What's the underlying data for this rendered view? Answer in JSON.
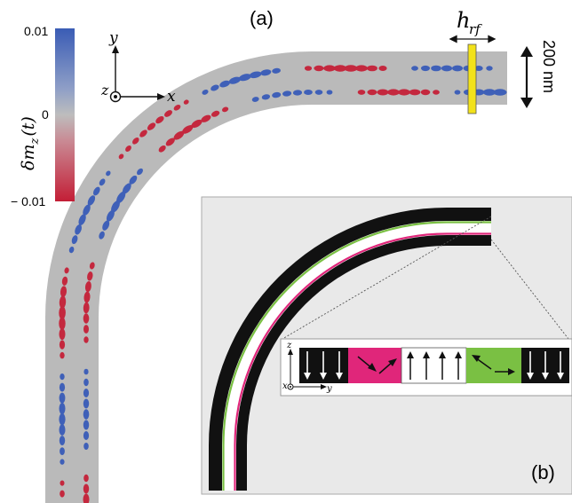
{
  "panel_a": {
    "label": "(a)",
    "field_label": "h",
    "field_subscript": "rf",
    "scale_label": "200 nm"
  },
  "colorbar": {
    "max_label": "0.01",
    "mid_label": "0",
    "min_label": "− 0.01",
    "quantity_label": "δm",
    "quantity_sub": "z",
    "quantity_suffix": "(t)",
    "colors": {
      "positive": "#3f60b8",
      "neutral": "#b9b9b9",
      "negative": "#c4283e"
    }
  },
  "axes_main": {
    "y": "y",
    "x": "x",
    "z": "z"
  },
  "panel_b": {
    "label": "(b)",
    "axes": {
      "z": "z",
      "y": "y",
      "x": "x"
    },
    "domain_colors": {
      "magenta": "#e0267a",
      "green": "#7ac043",
      "dark": "#111111"
    }
  },
  "waveguide": {
    "fill": "#b9b9b9"
  }
}
